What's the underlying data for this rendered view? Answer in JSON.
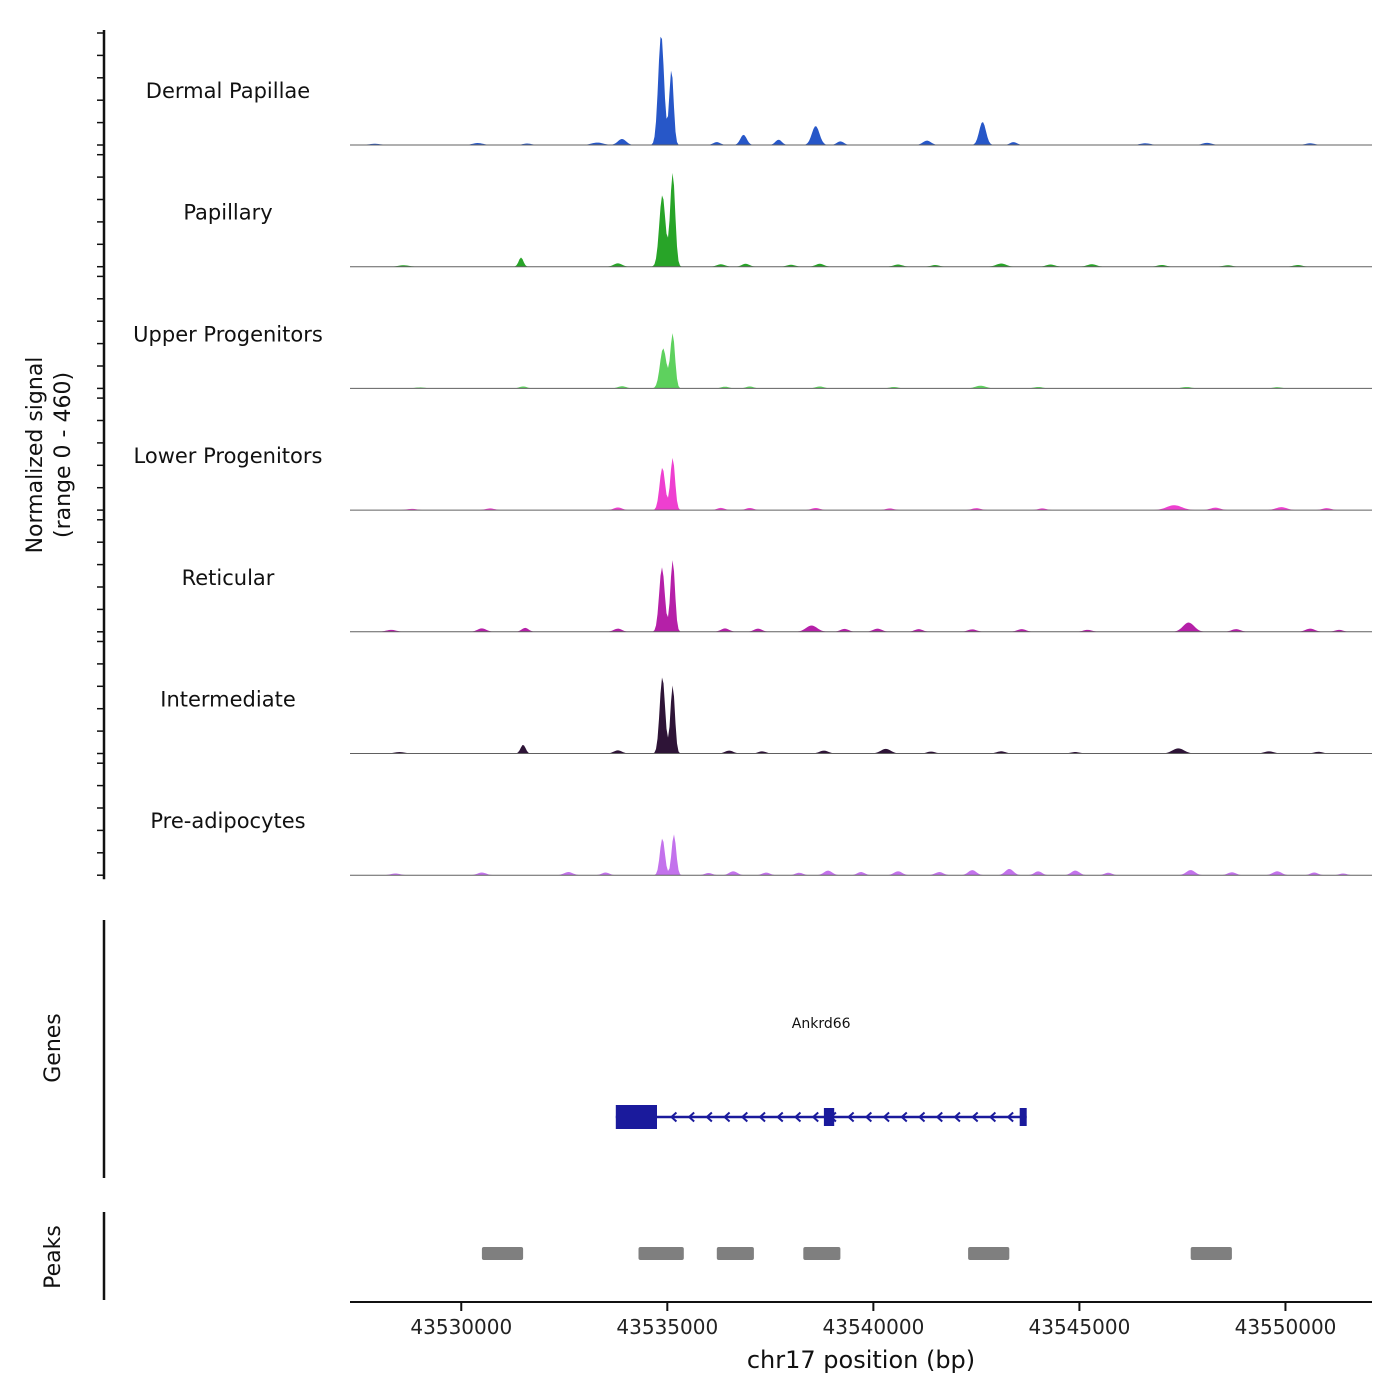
{
  "chart_data": {
    "type": "area",
    "title": "",
    "xlabel": "chr17 position (bp)",
    "ylabel_line1": "Normalized signal",
    "ylabel_line2": "(range 0 - 460)",
    "sections": {
      "genes": "Genes",
      "peaks": "Peaks"
    },
    "signal_range": [
      0,
      460
    ],
    "x_domain": [
      43527300,
      43552100
    ],
    "x_ticks": [
      {
        "pos": 43530000,
        "label": "43530000"
      },
      {
        "pos": 43535000,
        "label": "43535000"
      },
      {
        "pos": 43540000,
        "label": "43540000"
      },
      {
        "pos": 43545000,
        "label": "43545000"
      },
      {
        "pos": 43550000,
        "label": "43550000"
      }
    ],
    "tracks": [
      {
        "label": "Dermal Papillae",
        "color": "#2757c8",
        "peaks": [
          [
            43527900,
            5,
            200
          ],
          [
            43530400,
            8,
            180
          ],
          [
            43531600,
            6,
            150
          ],
          [
            43533300,
            10,
            200
          ],
          [
            43533900,
            25,
            140
          ],
          [
            43534850,
            455,
            100
          ],
          [
            43535100,
            310,
            75
          ],
          [
            43536200,
            12,
            120
          ],
          [
            43536850,
            42,
            110
          ],
          [
            43537700,
            22,
            110
          ],
          [
            43538600,
            78,
            130
          ],
          [
            43539200,
            15,
            120
          ],
          [
            43541300,
            18,
            140
          ],
          [
            43542650,
            95,
            115
          ],
          [
            43543400,
            12,
            120
          ],
          [
            43546600,
            7,
            180
          ],
          [
            43548100,
            9,
            160
          ],
          [
            43550600,
            7,
            160
          ]
        ]
      },
      {
        "label": "Papillary",
        "color": "#28a428",
        "peaks": [
          [
            43528600,
            6,
            180
          ],
          [
            43531450,
            38,
            80
          ],
          [
            43533800,
            14,
            140
          ],
          [
            43534880,
            295,
            105
          ],
          [
            43535130,
            385,
            85
          ],
          [
            43536300,
            10,
            140
          ],
          [
            43536900,
            12,
            130
          ],
          [
            43538000,
            8,
            140
          ],
          [
            43538700,
            12,
            140
          ],
          [
            43540600,
            9,
            150
          ],
          [
            43541500,
            7,
            140
          ],
          [
            43543100,
            13,
            170
          ],
          [
            43544300,
            9,
            150
          ],
          [
            43545300,
            10,
            160
          ],
          [
            43547000,
            7,
            150
          ],
          [
            43548600,
            6,
            150
          ],
          [
            43550300,
            7,
            150
          ]
        ]
      },
      {
        "label": "Upper Progenitors",
        "color": "#5ed15e",
        "peaks": [
          [
            43529000,
            4,
            180
          ],
          [
            43531500,
            8,
            130
          ],
          [
            43533900,
            9,
            140
          ],
          [
            43534900,
            165,
            110
          ],
          [
            43535130,
            225,
            80
          ],
          [
            43536400,
            7,
            140
          ],
          [
            43537000,
            8,
            130
          ],
          [
            43538700,
            8,
            140
          ],
          [
            43540500,
            6,
            140
          ],
          [
            43542600,
            11,
            180
          ],
          [
            43544000,
            6,
            150
          ],
          [
            43547600,
            6,
            160
          ],
          [
            43549800,
            5,
            150
          ]
        ]
      },
      {
        "label": "Lower Progenitors",
        "color": "#ee3fd0",
        "peaks": [
          [
            43528800,
            5,
            170
          ],
          [
            43530700,
            7,
            150
          ],
          [
            43533800,
            11,
            140
          ],
          [
            43534880,
            175,
            95
          ],
          [
            43535130,
            215,
            80
          ],
          [
            43536300,
            9,
            130
          ],
          [
            43537000,
            9,
            130
          ],
          [
            43538600,
            9,
            140
          ],
          [
            43540400,
            7,
            140
          ],
          [
            43542500,
            8,
            150
          ],
          [
            43544100,
            7,
            140
          ],
          [
            43547300,
            20,
            260
          ],
          [
            43548300,
            10,
            170
          ],
          [
            43549900,
            12,
            190
          ],
          [
            43551000,
            8,
            150
          ]
        ]
      },
      {
        "label": "Reticular",
        "color": "#b520a8",
        "peaks": [
          [
            43528300,
            8,
            170
          ],
          [
            43530500,
            14,
            150
          ],
          [
            43531550,
            16,
            120
          ],
          [
            43533800,
            13,
            140
          ],
          [
            43534870,
            265,
            95
          ],
          [
            43535130,
            295,
            78
          ],
          [
            43536400,
            14,
            140
          ],
          [
            43537200,
            13,
            140
          ],
          [
            43538500,
            26,
            190
          ],
          [
            43539300,
            12,
            140
          ],
          [
            43540100,
            13,
            150
          ],
          [
            43541100,
            11,
            140
          ],
          [
            43542400,
            10,
            150
          ],
          [
            43543600,
            11,
            150
          ],
          [
            43545200,
            8,
            150
          ],
          [
            43547650,
            38,
            190
          ],
          [
            43548800,
            11,
            150
          ],
          [
            43550600,
            13,
            160
          ],
          [
            43551300,
            8,
            140
          ]
        ]
      },
      {
        "label": "Intermediate",
        "color": "#2e1437",
        "peaks": [
          [
            43528500,
            6,
            170
          ],
          [
            43531500,
            36,
            85
          ],
          [
            43533800,
            13,
            140
          ],
          [
            43534880,
            315,
            92
          ],
          [
            43535130,
            280,
            76
          ],
          [
            43536500,
            12,
            140
          ],
          [
            43537300,
            9,
            130
          ],
          [
            43538800,
            12,
            150
          ],
          [
            43540300,
            19,
            170
          ],
          [
            43541400,
            8,
            140
          ],
          [
            43543100,
            9,
            150
          ],
          [
            43544900,
            6,
            150
          ],
          [
            43547400,
            21,
            200
          ],
          [
            43549600,
            9,
            160
          ],
          [
            43550800,
            7,
            150
          ]
        ]
      },
      {
        "label": "Pre-adipocytes",
        "color": "#c372ec",
        "peaks": [
          [
            43528400,
            7,
            160
          ],
          [
            43530500,
            11,
            150
          ],
          [
            43532600,
            13,
            150
          ],
          [
            43533500,
            11,
            130
          ],
          [
            43534880,
            152,
            85
          ],
          [
            43535160,
            168,
            78
          ],
          [
            43536000,
            9,
            130
          ],
          [
            43536600,
            16,
            140
          ],
          [
            43537400,
            11,
            130
          ],
          [
            43538200,
            10,
            130
          ],
          [
            43538900,
            19,
            140
          ],
          [
            43539700,
            13,
            130
          ],
          [
            43540600,
            16,
            140
          ],
          [
            43541600,
            13,
            140
          ],
          [
            43542400,
            21,
            140
          ],
          [
            43543300,
            26,
            140
          ],
          [
            43544000,
            16,
            130
          ],
          [
            43544900,
            19,
            140
          ],
          [
            43545700,
            10,
            130
          ],
          [
            43547700,
            21,
            150
          ],
          [
            43548700,
            12,
            140
          ],
          [
            43549800,
            16,
            150
          ],
          [
            43550700,
            11,
            130
          ],
          [
            43551400,
            7,
            130
          ]
        ]
      }
    ],
    "gene": {
      "name": "Ankrd66",
      "color": "#1a1a9c",
      "strand": "-",
      "start": 43533750,
      "end": 43543720,
      "exons": [
        [
          43533750,
          43534750
        ],
        [
          43538800,
          43539050
        ],
        [
          43543550,
          43543720
        ]
      ],
      "arrow_spacing": 430
    },
    "peak_regions": [
      [
        43530500,
        43531500
      ],
      [
        43534300,
        43535400
      ],
      [
        43536200,
        43537100
      ],
      [
        43538300,
        43539200
      ],
      [
        43542300,
        43543300
      ],
      [
        43547700,
        43548700
      ]
    ],
    "peak_color": "#7f7f7f"
  }
}
